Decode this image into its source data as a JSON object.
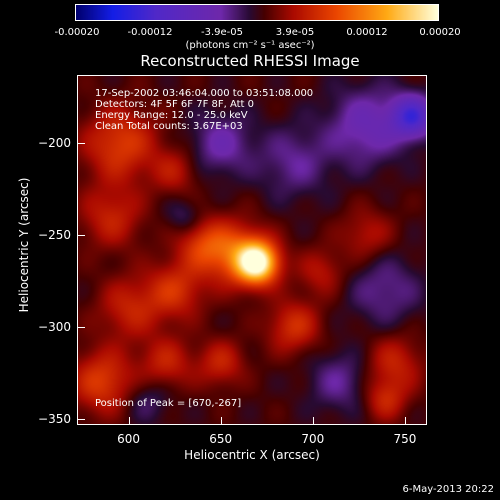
{
  "chart_data": {
    "type": "heatmap",
    "title": "Reconstructed RHESSI Image",
    "xlabel": "Heliocentric X (arcsec)",
    "ylabel": "Heliocentric Y (arcsec)",
    "xlim": [
      572,
      762
    ],
    "ylim": [
      -353,
      -163
    ],
    "x_ticks": [
      600,
      650,
      700,
      750
    ],
    "y_ticks": [
      -350,
      -300,
      -250,
      -200
    ],
    "colorbar": {
      "range": [
        -0.0002,
        0.0002
      ],
      "tick_labels": [
        "-0.00020",
        "-0.00012",
        "-3.9e-05",
        "3.9e-05",
        "0.00012",
        "0.00020"
      ],
      "unit_label": "(photons cm⁻² s⁻¹ asec⁻²)"
    },
    "peak": {
      "x": 670,
      "y": -267
    },
    "blobs": [
      {
        "x": 670,
        "y": -265,
        "amp": 0.00019,
        "sigma": 8
      },
      {
        "x": 658,
        "y": -260,
        "amp": 8e-05,
        "sigma": 12
      },
      {
        "x": 640,
        "y": -255,
        "amp": 6e-05,
        "sigma": 10
      },
      {
        "x": 625,
        "y": -280,
        "amp": 6e-05,
        "sigma": 11
      },
      {
        "x": 595,
        "y": -200,
        "amp": 7e-05,
        "sigma": 14
      },
      {
        "x": 590,
        "y": -240,
        "amp": 5e-05,
        "sigma": 12
      },
      {
        "x": 600,
        "y": -290,
        "amp": 5e-05,
        "sigma": 12
      },
      {
        "x": 585,
        "y": -330,
        "amp": 7e-05,
        "sigma": 12
      },
      {
        "x": 620,
        "y": -320,
        "amp": 5e-05,
        "sigma": 10
      },
      {
        "x": 650,
        "y": -320,
        "amp": 5e-05,
        "sigma": 9
      },
      {
        "x": 690,
        "y": -300,
        "amp": 6e-05,
        "sigma": 10
      },
      {
        "x": 705,
        "y": -270,
        "amp": 4e-05,
        "sigma": 9
      },
      {
        "x": 730,
        "y": -250,
        "amp": 4e-05,
        "sigma": 10
      },
      {
        "x": 745,
        "y": -320,
        "amp": 5e-05,
        "sigma": 11
      },
      {
        "x": 740,
        "y": -340,
        "amp": 5e-05,
        "sigma": 8
      },
      {
        "x": 625,
        "y": -215,
        "amp": 4e-05,
        "sigma": 9
      },
      {
        "x": 650,
        "y": -200,
        "amp": -5e-05,
        "sigma": 12
      },
      {
        "x": 690,
        "y": -210,
        "amp": -4e-05,
        "sigma": 14
      },
      {
        "x": 730,
        "y": -190,
        "amp": -6e-05,
        "sigma": 15
      },
      {
        "x": 755,
        "y": -185,
        "amp": -0.00012,
        "sigma": 8
      },
      {
        "x": 740,
        "y": -280,
        "amp": -4e-05,
        "sigma": 14
      },
      {
        "x": 715,
        "y": -330,
        "amp": -4e-05,
        "sigma": 12
      },
      {
        "x": 610,
        "y": -340,
        "amp": -3e-05,
        "sigma": 9
      },
      {
        "x": 630,
        "y": -240,
        "amp": -3e-05,
        "sigma": 7
      }
    ]
  },
  "overlay": {
    "time": "17-Sep-2002 03:46:04.000 to 03:51:08.000",
    "detectors": "Detectors: 4F 5F 6F 7F 8F, Att 0",
    "energy": "Energy Range: 12.0 - 25.0 keV",
    "clean": "Clean     Total counts: 3.67E+03",
    "peak_text": "Position of Peak = [670,-267]"
  },
  "footer_date": "6-May-2013 20:22",
  "colors": {
    "background": "#000000",
    "text": "#ffffff"
  }
}
